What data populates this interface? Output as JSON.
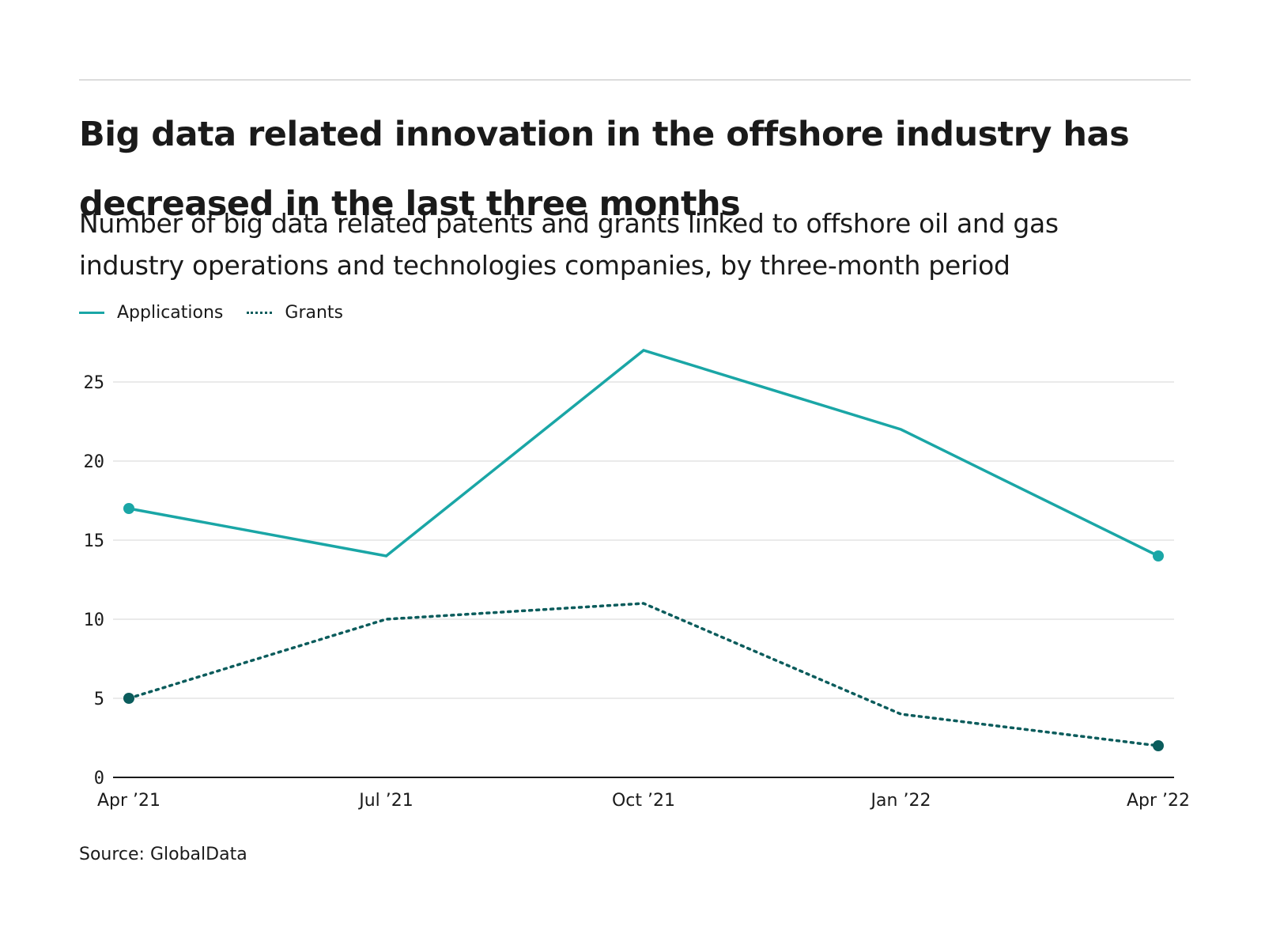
{
  "header": {
    "title_lines": [
      "Big data related innovation in the offshore industry has",
      "decreased in the last three months"
    ],
    "subtitle_lines": [
      "Number of big data related patents and grants linked to offshore oil and gas",
      "industry operations and technologies companies, by three-month period"
    ]
  },
  "legend": {
    "applications": "Applications",
    "grants": "Grants"
  },
  "footer": {
    "source": "Source: GlobalData"
  },
  "colors": {
    "applications": "#1aa6a6",
    "grants": "#0b5c5c",
    "grid": "#e3e3e3",
    "axis": "#1a1a1a"
  },
  "chart_data": {
    "type": "line",
    "title": "Big data related innovation in the offshore industry has decreased in the last three months",
    "categories": [
      "Apr ’21",
      "Jul ’21",
      "Oct ’21",
      "Jan ’22",
      "Apr ’22"
    ],
    "series": [
      {
        "name": "Applications",
        "values": [
          17,
          14,
          27,
          22,
          14
        ],
        "style": "solid",
        "endpoint_markers": true
      },
      {
        "name": "Grants",
        "values": [
          5,
          10,
          11,
          4,
          2
        ],
        "style": "dotted",
        "endpoint_markers": true
      }
    ],
    "yticks": [
      0,
      5,
      10,
      15,
      20,
      25
    ],
    "ylim": [
      0,
      27
    ],
    "xlabel": "",
    "ylabel": "",
    "grid": true,
    "legend_position": "top-left"
  }
}
